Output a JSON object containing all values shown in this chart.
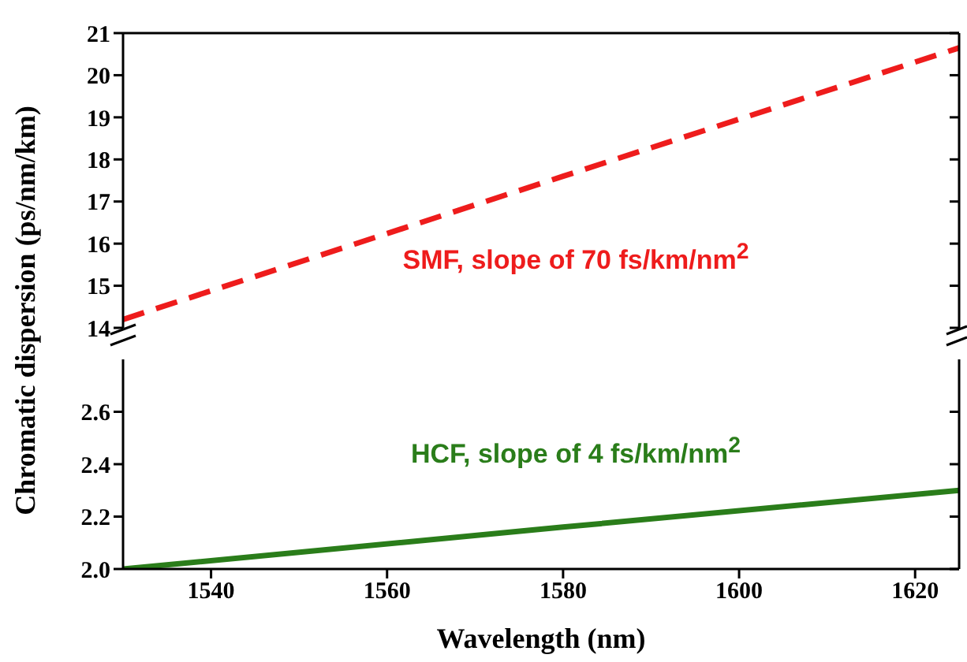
{
  "chart_data": [
    {
      "type": "line",
      "ylabel": "Chromatic dispersion (ps/nm/km)",
      "x": [
        1530,
        1580,
        1625
      ],
      "xlim": [
        1530,
        1625
      ],
      "ylim": [
        14,
        21
      ],
      "yticks": [
        14,
        15,
        16,
        17,
        18,
        19,
        20,
        21
      ],
      "tick_labels": "y",
      "grid": false,
      "legend": false,
      "marker": "none",
      "series": [
        {
          "color": "#ee1c1c",
          "values": [
            14.2,
            17.6,
            20.65
          ],
          "line_style": "dashed"
        }
      ],
      "annotations": [
        "SMF, slope of 70 fs/km/nm$^{2}$"
      ]
    },
    {
      "type": "line",
      "xlabel": "Wavelength (nm)",
      "x": [
        1530,
        1580,
        1625
      ],
      "xlim": [
        1530,
        1625
      ],
      "xticks": [
        1540,
        1560,
        1580,
        1600,
        1620
      ],
      "ylim": [
        2.0,
        2.8
      ],
      "yticks": [
        {
          "value": 2.0,
          "label": "2.0"
        },
        {
          "value": 2.2,
          "label": "2.2"
        },
        {
          "value": 2.4,
          "label": "2.4"
        },
        {
          "value": 2.6,
          "label": "2.6"
        }
      ],
      "grid": false,
      "legend": false,
      "marker": "none",
      "series": [
        {
          "color": "#2a7d1a",
          "values": [
            2.0,
            2.16,
            2.3
          ],
          "line_style": "solid"
        }
      ],
      "annotations": [
        "HCF, slope of 4 fs/km/nm$^{2}$"
      ]
    }
  ]
}
